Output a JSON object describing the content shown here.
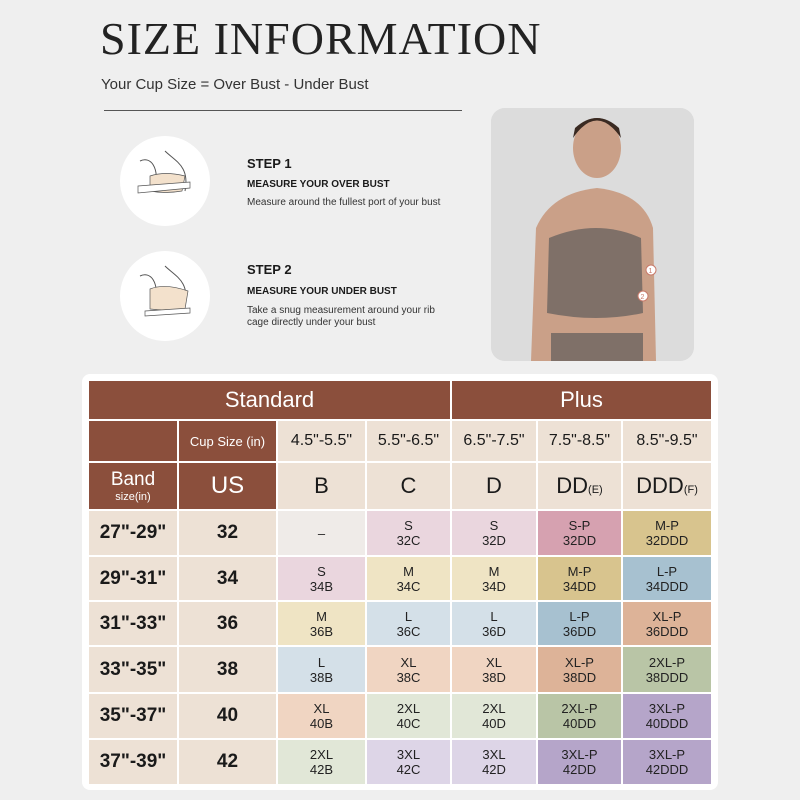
{
  "header": {
    "title": "SIZE INFORMATION",
    "subtitle": "Your Cup Size = Over Bust - Under Bust"
  },
  "steps": [
    {
      "title": "STEP 1",
      "heading": "MEASURE YOUR OVER BUST",
      "desc": "Measure around the fullest port of your bust"
    },
    {
      "title": "STEP 2",
      "heading": "MEASURE YOUR UNDER BUST",
      "desc": "Take a snug measurement around your rib cage directly under your bust"
    }
  ],
  "photo": {
    "markers": [
      "1",
      "2"
    ]
  },
  "table": {
    "group_headers": [
      "Standard",
      "Plus"
    ],
    "cup_size_label": "Cup Size (in)",
    "ranges": [
      "4.5\"-5.5\"",
      "5.5\"-6.5\"",
      "6.5\"-7.5\"",
      "7.5\"-8.5\"",
      "8.5\"-9.5\""
    ],
    "band_label": "Band",
    "band_sub": "size(in)",
    "us_label": "US",
    "cups": [
      {
        "c": "B",
        "s": ""
      },
      {
        "c": "C",
        "s": ""
      },
      {
        "c": "D",
        "s": ""
      },
      {
        "c": "DD",
        "s": "(E)"
      },
      {
        "c": "DDD",
        "s": "(F)"
      }
    ],
    "rows": [
      {
        "band": "27\"-29\"",
        "us": "32",
        "cells": [
          {
            "size": "–",
            "code": ""
          },
          {
            "size": "S",
            "code": "32C"
          },
          {
            "size": "S",
            "code": "32D"
          },
          {
            "size": "S-P",
            "code": "32DD"
          },
          {
            "size": "M-P",
            "code": "32DDD"
          }
        ]
      },
      {
        "band": "29\"-31\"",
        "us": "34",
        "cells": [
          {
            "size": "S",
            "code": "34B"
          },
          {
            "size": "M",
            "code": "34C"
          },
          {
            "size": "M",
            "code": "34D"
          },
          {
            "size": "M-P",
            "code": "34DD"
          },
          {
            "size": "L-P",
            "code": "34DDD"
          }
        ]
      },
      {
        "band": "31\"-33\"",
        "us": "36",
        "cells": [
          {
            "size": "M",
            "code": "36B"
          },
          {
            "size": "L",
            "code": "36C"
          },
          {
            "size": "L",
            "code": "36D"
          },
          {
            "size": "L-P",
            "code": "36DD"
          },
          {
            "size": "XL-P",
            "code": "36DDD"
          }
        ]
      },
      {
        "band": "33\"-35\"",
        "us": "38",
        "cells": [
          {
            "size": "L",
            "code": "38B"
          },
          {
            "size": "XL",
            "code": "38C"
          },
          {
            "size": "XL",
            "code": "38D"
          },
          {
            "size": "XL-P",
            "code": "38DD"
          },
          {
            "size": "2XL-P",
            "code": "38DDD"
          }
        ]
      },
      {
        "band": "35\"-37\"",
        "us": "40",
        "cells": [
          {
            "size": "XL",
            "code": "40B"
          },
          {
            "size": "2XL",
            "code": "40C"
          },
          {
            "size": "2XL",
            "code": "40D"
          },
          {
            "size": "2XL-P",
            "code": "40DD"
          },
          {
            "size": "3XL-P",
            "code": "40DDD"
          }
        ]
      },
      {
        "band": "37\"-39\"",
        "us": "42",
        "cells": [
          {
            "size": "2XL",
            "code": "42B"
          },
          {
            "size": "3XL",
            "code": "42C"
          },
          {
            "size": "3XL",
            "code": "42D"
          },
          {
            "size": "3XL-P",
            "code": "42DD"
          },
          {
            "size": "3XL-P",
            "code": "42DDD"
          }
        ]
      }
    ]
  },
  "colors": {
    "header_brown": "#8b4f3c",
    "beige": "#ede1d5",
    "size_colors": {
      "–": "#efebe8",
      "S": "#ead6de",
      "S-P": "#d6a1b0",
      "M": "#efe4c4",
      "M-P": "#d8c48e",
      "L": "#d4e0e8",
      "L-P": "#a7c1d0",
      "XL": "#f0d5c2",
      "XL-P": "#ddb398",
      "2XL": "#e1e7d7",
      "2XL-P": "#b9c5a6",
      "3XL": "#ddd5e7",
      "3XL-P": "#b5a5c9"
    }
  }
}
